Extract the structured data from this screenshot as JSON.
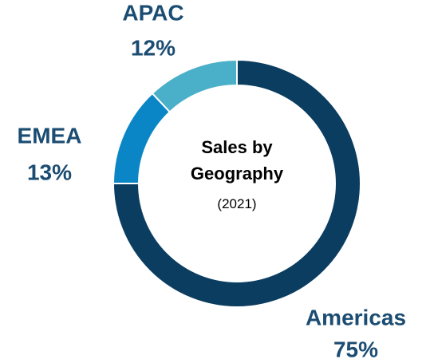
{
  "chart_data": {
    "type": "donut",
    "title": "Sales by Geography",
    "subtitle": "(2021)",
    "categories": [
      "Americas",
      "EMEA",
      "APAC"
    ],
    "values": [
      75,
      13,
      12
    ],
    "value_labels": [
      "75%",
      "13%",
      "12%"
    ],
    "colors": [
      "#0b3d60",
      "#0a86c6",
      "#4aafc8"
    ]
  }
}
